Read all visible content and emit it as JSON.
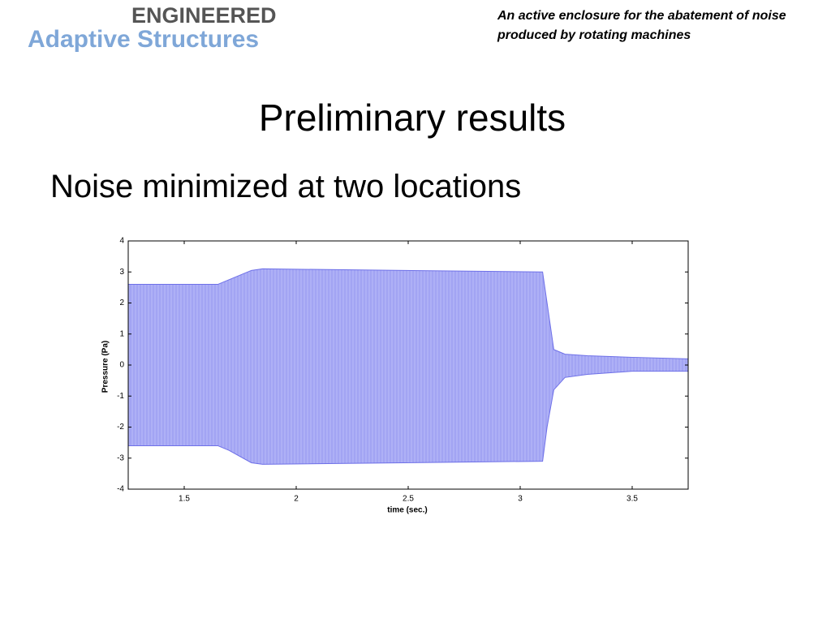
{
  "header": {
    "logo_top": "ENGINEERED",
    "logo_bottom": "Adaptive Structures",
    "subtitle": "An active enclosure for the abatement of noise produced by rotating machines",
    "title": "Preliminary results",
    "bullet": "Noise minimized at two locations"
  },
  "chart_data": {
    "type": "band",
    "xlabel": "time (sec.)",
    "ylabel": "Pressure (Pa)",
    "x": [
      1.25,
      1.65,
      1.7,
      1.8,
      1.85,
      3.1,
      3.12,
      3.15,
      3.2,
      3.3,
      3.5,
      3.75
    ],
    "series": [
      {
        "color": "#6e70e8",
        "values": [
          2.6,
          2.6,
          2.75,
          3.05,
          3.1,
          3.0,
          2.0,
          0.5,
          0.35,
          0.3,
          0.25,
          0.2
        ]
      },
      {
        "color": "#6e70e8",
        "values": [
          -2.6,
          -2.6,
          -2.75,
          -3.15,
          -3.2,
          -3.1,
          -2.0,
          -0.8,
          -0.4,
          -0.3,
          -0.2,
          -0.2
        ]
      }
    ],
    "fill": "#aeb0f6",
    "xlim": [
      1.25,
      3.75
    ],
    "xticks": [
      1.5,
      2,
      2.5,
      3,
      3.5
    ],
    "ylim": [
      -4,
      4
    ],
    "yticks": [
      -4,
      -3,
      -2,
      -1,
      0,
      1,
      2,
      3,
      4
    ]
  }
}
